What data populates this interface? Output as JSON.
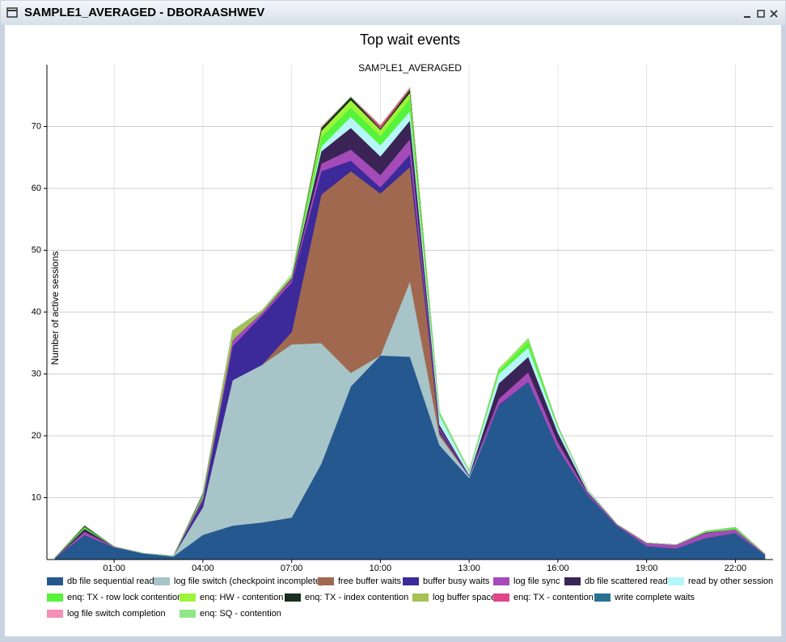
{
  "window": {
    "title": "SAMPLE1_AVERAGED - DBORAASHWEV"
  },
  "chart_data": {
    "type": "stacked_area",
    "title": "Top wait events",
    "subtitle": "SAMPLE1_AVERAGED",
    "y_label": "Number of active sessions",
    "categories": [
      null,
      null,
      "01:00",
      null,
      null,
      "04:00",
      null,
      null,
      "07:00",
      null,
      null,
      "10:00",
      null,
      null,
      "13:00",
      null,
      null,
      "16:00",
      null,
      null,
      "19:00",
      null,
      null,
      "22:00",
      null
    ],
    "ylim": [
      0,
      80
    ],
    "yticks": [
      10,
      20,
      30,
      40,
      50,
      60,
      70
    ],
    "grid": true,
    "legend": "bottom",
    "series": [
      {
        "name": "db file sequential read",
        "color": "#25588f",
        "values": [
          0.3,
          4,
          2,
          1,
          0.5,
          4,
          5.5,
          6,
          6.8,
          15.5,
          28,
          33,
          32.8,
          18.5,
          13.2,
          24.8,
          28.8,
          18,
          10.5,
          5.5,
          2.2,
          1.8,
          3.5,
          4.3,
          0.8
        ]
      },
      {
        "name": "log file switch (checkpoint incomplete)",
        "color": "#a7c4c8",
        "values": [
          0,
          0,
          0,
          0,
          0.1,
          4.5,
          23.5,
          25.5,
          28,
          19.5,
          2.2,
          0,
          12.2,
          1.5,
          0.3,
          0,
          0,
          0,
          0,
          0,
          0,
          0,
          0,
          0,
          0
        ]
      },
      {
        "name": "free buffer waits",
        "color": "#a0694f",
        "values": [
          0,
          0,
          0,
          0,
          0,
          0,
          0,
          0,
          2,
          24,
          32.6,
          26.2,
          18.5,
          0.5,
          0,
          0,
          0,
          0,
          0,
          0,
          0,
          0,
          0,
          0,
          0
        ]
      },
      {
        "name": "buffer busy waits",
        "color": "#3c2a9a",
        "values": [
          0,
          0,
          0,
          0,
          0,
          1,
          5.5,
          8,
          8,
          3.8,
          1.7,
          1,
          2,
          0.5,
          0.2,
          0.2,
          0,
          0,
          0,
          0,
          0,
          0,
          0,
          0,
          0
        ]
      },
      {
        "name": "log file sync",
        "color": "#a44bb8",
        "values": [
          0,
          0.5,
          0.1,
          0,
          0,
          0.3,
          1,
          0.5,
          0.5,
          1.2,
          1.8,
          2,
          2.5,
          0.3,
          0,
          1,
          1.5,
          1,
          0.3,
          0.2,
          0.5,
          0.6,
          0.8,
          0.6,
          0.1
        ]
      },
      {
        "name": "db file scattered read",
        "color": "#3a2456",
        "values": [
          0,
          0.5,
          0,
          0,
          0,
          0.2,
          0,
          0,
          0.2,
          2,
          3.5,
          3,
          3,
          0.5,
          0,
          2.5,
          2.5,
          1.5,
          0.2,
          0,
          0,
          0,
          0.1,
          0,
          0
        ]
      },
      {
        "name": "read by other session",
        "color": "#b6f6f7",
        "values": [
          0,
          0,
          0,
          0,
          0,
          0,
          0,
          0,
          0,
          0.8,
          1.8,
          1.8,
          1.5,
          1.5,
          0.5,
          1.5,
          1.5,
          0.8,
          0.3,
          0,
          0,
          0,
          0,
          0,
          0
        ]
      },
      {
        "name": "enq: TX - row lock contention",
        "color": "#55f43a",
        "values": [
          0,
          0.3,
          0,
          0,
          0,
          0,
          0,
          0,
          0,
          1.5,
          1.5,
          1.5,
          2,
          0.3,
          0,
          0.5,
          1,
          0.3,
          0,
          0,
          0,
          0,
          0.2,
          0.3,
          0
        ]
      },
      {
        "name": "enq: HW - contention",
        "color": "#9ef43a",
        "values": [
          0,
          0,
          0,
          0,
          0,
          0,
          0,
          0,
          0,
          1,
          1.2,
          1,
          1,
          0,
          0,
          0.3,
          0.3,
          0,
          0,
          0,
          0,
          0,
          0,
          0,
          0
        ]
      },
      {
        "name": "enq: TX - index contention",
        "color": "#1b2e1f",
        "values": [
          0,
          0.2,
          0,
          0,
          0,
          0,
          0,
          0,
          0,
          0.5,
          0.5,
          0.2,
          0.5,
          0,
          0,
          0,
          0,
          0,
          0,
          0,
          0,
          0,
          0,
          0,
          0
        ]
      },
      {
        "name": "log buffer space",
        "color": "#a5c255",
        "values": [
          0,
          0,
          0,
          0,
          0,
          0.5,
          1.5,
          0.3,
          0.3,
          0,
          0,
          0,
          0,
          0,
          0,
          0,
          0,
          0,
          0,
          0,
          0,
          0,
          0,
          0,
          0
        ]
      },
      {
        "name": "enq: TX - contention",
        "color": "#e0458a",
        "values": [
          0,
          0,
          0,
          0,
          0,
          0,
          0,
          0,
          0,
          0,
          0,
          0.5,
          0.3,
          0,
          0,
          0,
          0,
          0,
          0,
          0,
          0,
          0,
          0,
          0,
          0
        ]
      },
      {
        "name": "write complete waits",
        "color": "#2a7192",
        "values": [
          0,
          0,
          0,
          0,
          0,
          0.3,
          0,
          0,
          0,
          0,
          0,
          0,
          0,
          0,
          0,
          0,
          0,
          0,
          0,
          0,
          0,
          0,
          0,
          0,
          0
        ]
      },
      {
        "name": "log file switch completion",
        "color": "#f590b6",
        "values": [
          0,
          0,
          0,
          0,
          0,
          0,
          0,
          0,
          0,
          0.2,
          0,
          0,
          0,
          0,
          0,
          0,
          0,
          0,
          0,
          0,
          0,
          0,
          0,
          0,
          0
        ]
      },
      {
        "name": "enq: SQ - contention",
        "color": "#92e68a",
        "values": [
          0,
          0,
          0,
          0,
          0,
          0,
          0,
          0,
          0.3,
          0,
          0,
          0,
          0,
          0.3,
          0.3,
          0,
          0.2,
          0,
          0,
          0,
          0,
          0,
          0,
          0,
          0
        ]
      }
    ]
  }
}
